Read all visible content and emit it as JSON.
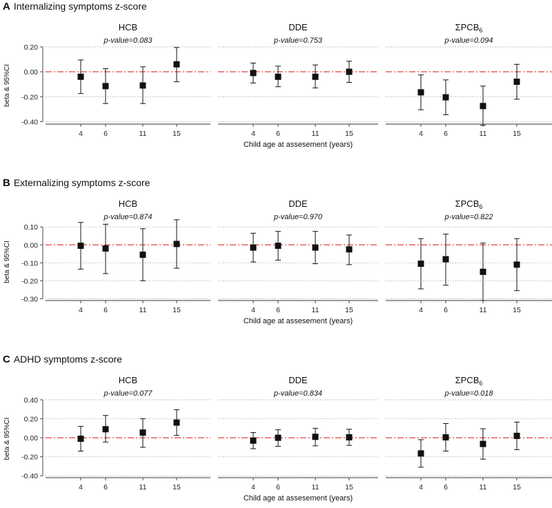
{
  "figure": {
    "x_label": "Child age at assesement (years)",
    "y_label": "beta & 95%CI",
    "reference_color": "#e0443c"
  },
  "chart_data": [
    {
      "type": "scatter",
      "letter": "A",
      "title": "Internalizing symptoms z-score",
      "ylim": [
        -0.42,
        0.2
      ],
      "yticks": [
        0.2,
        0.0,
        -0.2,
        -0.4
      ],
      "ytick_labels": [
        "0.20",
        "0.00",
        "-0.20",
        "-0.40"
      ],
      "categories": [
        "4",
        "6",
        "11",
        "15"
      ],
      "panels": [
        {
          "name": "HCB",
          "pvalue": "p-value=0.083",
          "values": [
            -0.04,
            -0.115,
            -0.11,
            0.06
          ],
          "lower": [
            -0.175,
            -0.255,
            -0.255,
            -0.08
          ],
          "upper": [
            0.095,
            0.025,
            0.04,
            0.195
          ]
        },
        {
          "name": "DDE",
          "pvalue": "p-value=0.753",
          "values": [
            -0.01,
            -0.04,
            -0.04,
            0.0
          ],
          "lower": [
            -0.09,
            -0.12,
            -0.13,
            -0.085
          ],
          "upper": [
            0.07,
            0.045,
            0.055,
            0.085
          ]
        },
        {
          "name": "ΣPCB6",
          "pvalue": "p-value=0.094",
          "values": [
            -0.165,
            -0.205,
            -0.275,
            -0.08
          ],
          "lower": [
            -0.305,
            -0.345,
            -0.43,
            -0.22
          ],
          "upper": [
            -0.025,
            -0.065,
            -0.115,
            0.06
          ]
        }
      ]
    },
    {
      "type": "scatter",
      "letter": "B",
      "title": "Externalizing symptoms z-score",
      "ylim": [
        -0.31,
        0.12
      ],
      "yticks": [
        0.1,
        0.0,
        -0.1,
        -0.2,
        -0.3
      ],
      "ytick_labels": [
        "0.10",
        "0.00",
        "-0.10",
        "-0.20",
        "-0.30"
      ],
      "categories": [
        "4",
        "6",
        "11",
        "15"
      ],
      "panels": [
        {
          "name": "HCB",
          "pvalue": "p-value=0.874",
          "values": [
            -0.005,
            -0.02,
            -0.055,
            0.005
          ],
          "lower": [
            -0.135,
            -0.16,
            -0.2,
            -0.13
          ],
          "upper": [
            0.125,
            0.115,
            0.09,
            0.14
          ]
        },
        {
          "name": "DDE",
          "pvalue": "p-value=0.970",
          "values": [
            -0.015,
            -0.005,
            -0.015,
            -0.025
          ],
          "lower": [
            -0.095,
            -0.085,
            -0.105,
            -0.11
          ],
          "upper": [
            0.065,
            0.075,
            0.075,
            0.055
          ]
        },
        {
          "name": "ΣPCB6",
          "pvalue": "p-value=0.822",
          "values": [
            -0.105,
            -0.08,
            -0.15,
            -0.11
          ],
          "lower": [
            -0.245,
            -0.225,
            -0.31,
            -0.255
          ],
          "upper": [
            0.035,
            0.06,
            0.01,
            0.035
          ]
        }
      ]
    },
    {
      "type": "scatter",
      "letter": "C",
      "title": "ADHD symptoms z-score",
      "ylim": [
        -0.42,
        0.4
      ],
      "yticks": [
        0.4,
        0.2,
        0.0,
        -0.2,
        -0.4
      ],
      "ytick_labels": [
        "0.40",
        "0.20",
        "0.00",
        "-0.20",
        "-0.40"
      ],
      "categories": [
        "4",
        "6",
        "11",
        "15"
      ],
      "panels": [
        {
          "name": "HCB",
          "pvalue": "p-value=0.077",
          "values": [
            -0.01,
            0.09,
            0.055,
            0.16
          ],
          "lower": [
            -0.14,
            -0.045,
            -0.1,
            0.025
          ],
          "upper": [
            0.12,
            0.235,
            0.2,
            0.295
          ]
        },
        {
          "name": "DDE",
          "pvalue": "p-value=0.834",
          "values": [
            -0.03,
            0.0,
            0.01,
            0.005
          ],
          "lower": [
            -0.115,
            -0.09,
            -0.085,
            -0.08
          ],
          "upper": [
            0.055,
            0.085,
            0.1,
            0.09
          ]
        },
        {
          "name": "ΣPCB6",
          "pvalue": "p-value=0.018",
          "values": [
            -0.165,
            0.005,
            -0.065,
            0.02
          ],
          "lower": [
            -0.31,
            -0.14,
            -0.225,
            -0.125
          ],
          "upper": [
            -0.02,
            0.15,
            0.095,
            0.165
          ]
        }
      ]
    }
  ]
}
